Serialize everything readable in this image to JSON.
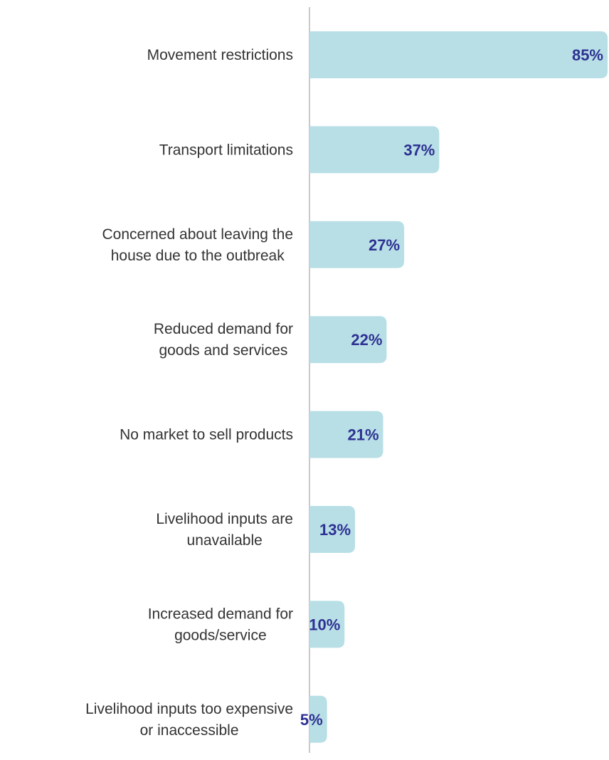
{
  "chart_data": {
    "type": "bar",
    "orientation": "horizontal",
    "categories": [
      [
        "Movement restrictions"
      ],
      [
        "Transport limitations"
      ],
      [
        "Concerned about leaving the",
        "house due to the outbreak"
      ],
      [
        "Reduced demand for",
        "goods and services"
      ],
      [
        "No market to sell products"
      ],
      [
        "Livelihood inputs are",
        "unavailable"
      ],
      [
        "Increased demand for",
        "goods/service"
      ],
      [
        "Livelihood inputs too expensive",
        "or inaccessible"
      ]
    ],
    "values": [
      85,
      37,
      27,
      22,
      21,
      13,
      10,
      5
    ],
    "value_labels": [
      "85%",
      "37%",
      "27%",
      "22%",
      "21%",
      "13%",
      "10%",
      "5%"
    ],
    "unit": "%",
    "xlim": [
      0,
      85
    ],
    "grid": false,
    "legend": "none"
  },
  "colors": {
    "bar": "#b8dfe6",
    "value_text": "#2e3192",
    "label_text": "#333333",
    "axis": "#c9c9c9"
  }
}
